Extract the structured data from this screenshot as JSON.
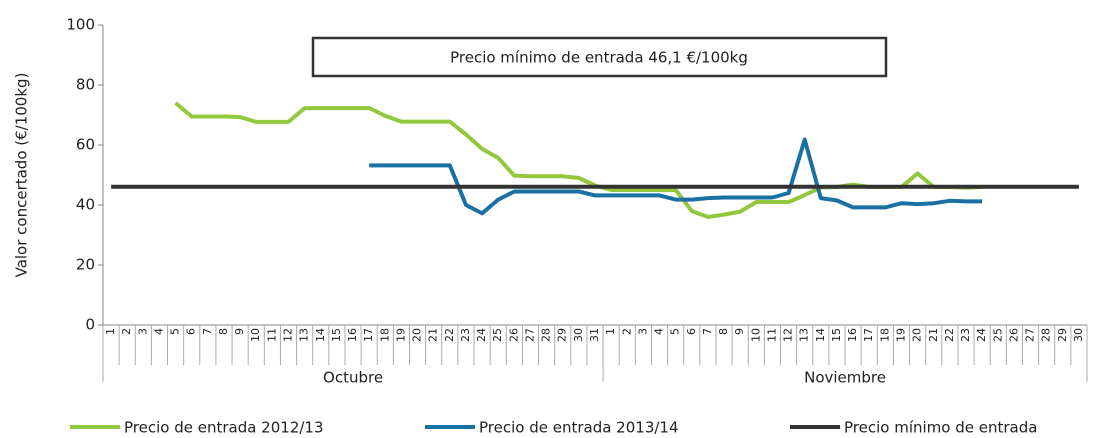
{
  "chart_data": {
    "type": "line",
    "y_axis_label": "Valor concertado (€/100kg)",
    "annotation": "Precio mínimo de entrada 46,1 €/100kg",
    "category_groups": [
      {
        "name": "Octubre",
        "categories": [
          "1",
          "2",
          "3",
          "4",
          "5",
          "6",
          "7",
          "8",
          "9",
          "10",
          "11",
          "12",
          "13",
          "14",
          "15",
          "16",
          "17",
          "18",
          "19",
          "20",
          "21",
          "22",
          "23",
          "24",
          "25",
          "26",
          "27",
          "28",
          "29",
          "30",
          "31"
        ]
      },
      {
        "name": "Noviembre",
        "categories": [
          "1",
          "2",
          "3",
          "4",
          "5",
          "6",
          "7",
          "8",
          "9",
          "10",
          "11",
          "12",
          "13",
          "14",
          "15",
          "16",
          "17",
          "18",
          "19",
          "20",
          "21",
          "22",
          "23",
          "24",
          "25",
          "26",
          "27",
          "28",
          "29",
          "30"
        ]
      }
    ],
    "ylim": [
      0,
      100
    ],
    "yticks": [
      0,
      20,
      40,
      60,
      80,
      100
    ],
    "grid": false,
    "legend": "bottom",
    "series": [
      {
        "name": "Precio de entrada 2012/13",
        "color": "#92c83e",
        "values": [
          null,
          null,
          null,
          null,
          74,
          69.5,
          69.5,
          69.5,
          69.3,
          67.7,
          67.7,
          67.7,
          72.3,
          72.3,
          72.3,
          72.3,
          72.3,
          69.7,
          67.8,
          67.8,
          67.8,
          67.8,
          63.5,
          58.7,
          55.7,
          49.8,
          49.6,
          49.6,
          49.6,
          49,
          46.5,
          45,
          45,
          45,
          45,
          45,
          38,
          36,
          36.8,
          37.8,
          41,
          41,
          41,
          43.3,
          45.8,
          46,
          46.8,
          46,
          46,
          46,
          50.5,
          46,
          46,
          45.8,
          46,
          null,
          null,
          null,
          null,
          null,
          null
        ]
      },
      {
        "name": "Precio de entrada 2013/14",
        "color": "#1a6fa3",
        "values": [
          null,
          null,
          null,
          null,
          null,
          null,
          null,
          null,
          null,
          null,
          null,
          null,
          null,
          null,
          null,
          null,
          53.2,
          53.2,
          53.2,
          53.2,
          53.2,
          53.2,
          40,
          37.2,
          41.8,
          44.5,
          44.5,
          44.5,
          44.5,
          44.5,
          43.2,
          43.2,
          43.2,
          43.2,
          43.2,
          41.8,
          41.8,
          42.3,
          42.5,
          42.5,
          42.5,
          42.5,
          44,
          61.8,
          42.3,
          41.5,
          39.2,
          39.2,
          39.2,
          40.6,
          40.3,
          40.6,
          41.4,
          41.2,
          41.2,
          null,
          null,
          null,
          null,
          null,
          null
        ]
      },
      {
        "name": "Precio mínimo de entrada",
        "color": "#333333",
        "values": [
          46.1,
          46.1,
          46.1,
          46.1,
          46.1,
          46.1,
          46.1,
          46.1,
          46.1,
          46.1,
          46.1,
          46.1,
          46.1,
          46.1,
          46.1,
          46.1,
          46.1,
          46.1,
          46.1,
          46.1,
          46.1,
          46.1,
          46.1,
          46.1,
          46.1,
          46.1,
          46.1,
          46.1,
          46.1,
          46.1,
          46.1,
          46.1,
          46.1,
          46.1,
          46.1,
          46.1,
          46.1,
          46.1,
          46.1,
          46.1,
          46.1,
          46.1,
          46.1,
          46.1,
          46.1,
          46.1,
          46.1,
          46.1,
          46.1,
          46.1,
          46.1,
          46.1,
          46.1,
          46.1,
          46.1,
          46.1,
          46.1,
          46.1,
          46.1,
          46.1,
          46.1
        ]
      }
    ]
  }
}
